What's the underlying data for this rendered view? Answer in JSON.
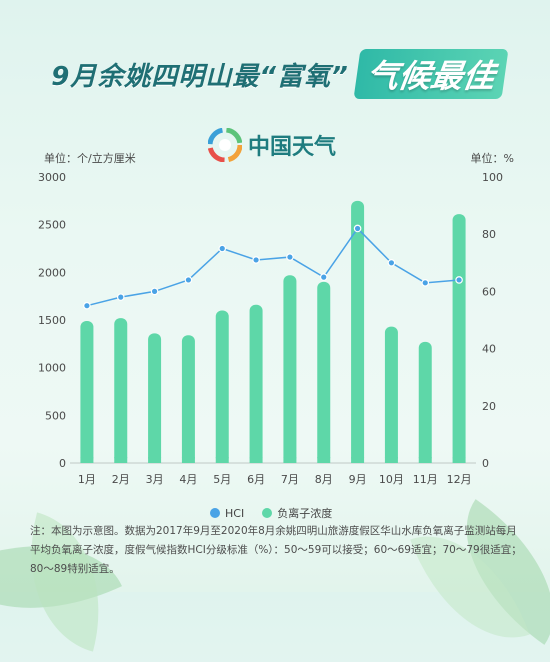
{
  "title": {
    "main": "9月余姚四明山最“富氧”",
    "highlight": "气候最佳"
  },
  "logo": {
    "text": "中国天气",
    "icon": "china-weather-logo-icon"
  },
  "units": {
    "left": "单位：个/立方厘米",
    "right": "单位：%"
  },
  "colors": {
    "hci": "#4aa3e6",
    "ion": "#5ed7a8"
  },
  "chart_data": {
    "type": "bar",
    "categories": [
      "1月",
      "2月",
      "3月",
      "4月",
      "5月",
      "6月",
      "7月",
      "8月",
      "9月",
      "10月",
      "11月",
      "12月"
    ],
    "y_left": {
      "ylim": [
        0,
        3000
      ],
      "ticks": [
        "0",
        "500",
        "1000",
        "1500",
        "2000",
        "2500",
        "3000"
      ]
    },
    "y_right": {
      "ylim": [
        0,
        100
      ],
      "ticks": [
        "0",
        "20",
        "40",
        "60",
        "80",
        "100"
      ]
    },
    "series": [
      {
        "name": "负离子浓度",
        "type": "bar",
        "axis": "left",
        "values": [
          1490,
          1520,
          1360,
          1340,
          1600,
          1660,
          1970,
          1900,
          2750,
          1430,
          1270,
          2610
        ]
      },
      {
        "name": "HCI",
        "type": "line",
        "axis": "right",
        "values": [
          55,
          58,
          60,
          64,
          75,
          71,
          72,
          65,
          82,
          70,
          63,
          64
        ]
      }
    ],
    "legend": "bottom"
  },
  "note": "注：本图为示意图。数据为2017年9月至2020年8月余姚四明山旅游度假区华山水库负氧离子监测站每月平均负氧离子浓度，度假气候指数HCI分级标准（%）：50～59可以接受；60～69适宜；70～79很适宜；80～89特别适宜。"
}
